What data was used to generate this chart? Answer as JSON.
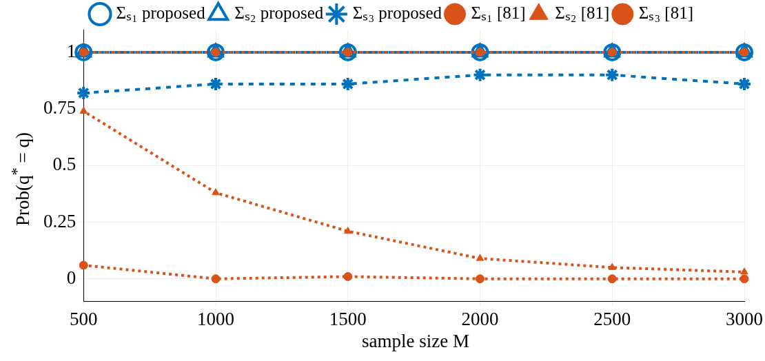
{
  "chart_data": {
    "type": "line",
    "x": [
      500,
      1000,
      1500,
      2000,
      2500,
      3000
    ],
    "series": [
      {
        "name": "Σₛ₁ proposed",
        "color": "#0072bd",
        "marker": "circle",
        "line_style": "dashed",
        "values": [
          1,
          1,
          1,
          1,
          1,
          1
        ]
      },
      {
        "name": "Σₛ₂ proposed",
        "color": "#0072bd",
        "marker": "triangle",
        "line_style": "dashed",
        "values": [
          1,
          1,
          1,
          1,
          1,
          1
        ]
      },
      {
        "name": "Σₛ₃ proposed",
        "color": "#0072bd",
        "marker": "cross",
        "line_style": "dashed",
        "values": [
          0.82,
          0.86,
          0.86,
          0.9,
          0.9,
          0.86
        ]
      },
      {
        "name": "Σₛ₁ [81]",
        "color": "#d95319",
        "marker": "circle",
        "line_style": "dotted",
        "values": [
          1,
          1,
          1,
          1,
          1,
          1
        ]
      },
      {
        "name": "Σₛ₂ [81]",
        "color": "#d95319",
        "marker": "triangle",
        "line_style": "dotted",
        "values": [
          0.74,
          0.38,
          0.21,
          0.09,
          0.05,
          0.03
        ]
      },
      {
        "name": "Σₛ₃ [81]",
        "color": "#d95319",
        "marker": "circle",
        "line_style": "dotted",
        "values": [
          0.06,
          0,
          0.01,
          0,
          0,
          0
        ]
      }
    ],
    "xlabel": "sample size M",
    "ylabel": "Prob(q$^{*}$ = q)",
    "xlim": [
      500,
      3000
    ],
    "xticks": [
      500,
      1000,
      1500,
      2000,
      2500,
      3000
    ],
    "ylim": [
      -0.1,
      1.1
    ],
    "yticks": [
      0,
      0.25,
      0.5,
      0.75,
      1
    ],
    "grid": true,
    "legend": "top"
  }
}
